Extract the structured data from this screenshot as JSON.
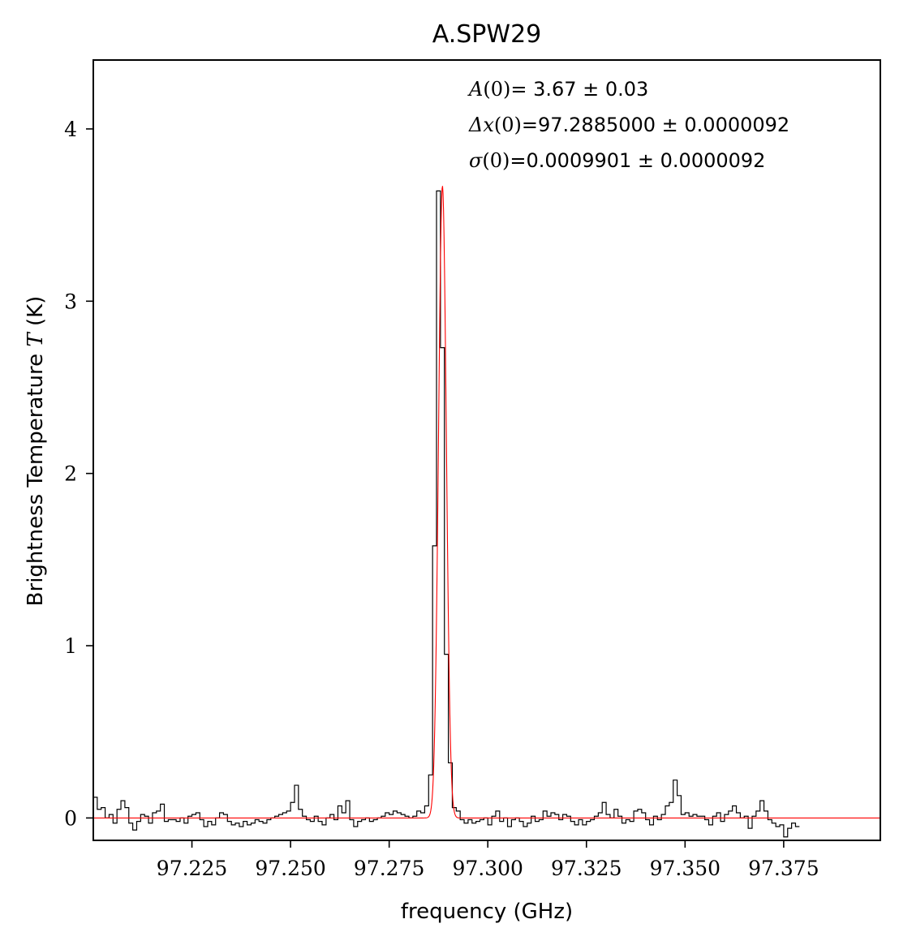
{
  "chart_data": {
    "type": "line",
    "title": "A.SPW29",
    "xlabel": "frequency (GHz)",
    "ylabel_prefix": "Brightness Temperature ",
    "ylabel_var": "T",
    "ylabel_suffix": " (K)",
    "xlim": [
      97.2,
      97.3995
    ],
    "ylim": [
      -0.13,
      4.4
    ],
    "xticks": [
      97.225,
      97.25,
      97.275,
      97.3,
      97.325,
      97.35,
      97.375
    ],
    "xtick_labels": [
      "97.225",
      "97.250",
      "97.275",
      "97.300",
      "97.325",
      "97.350",
      "97.375"
    ],
    "yticks": [
      0,
      1,
      2,
      3,
      4
    ],
    "ytick_labels": [
      "0",
      "1",
      "2",
      "3",
      "4"
    ],
    "x_start": 97.2,
    "x_step": 0.001,
    "series": [
      {
        "name": "spectrum",
        "style": "steps",
        "color": "#000000",
        "values": [
          0.12,
          0.05,
          0.06,
          0.0,
          0.02,
          -0.03,
          0.05,
          0.1,
          0.06,
          -0.03,
          -0.07,
          -0.02,
          0.02,
          0.01,
          -0.03,
          0.03,
          0.04,
          0.08,
          -0.02,
          -0.01,
          -0.01,
          -0.02,
          0.0,
          -0.03,
          0.01,
          0.02,
          0.03,
          -0.01,
          -0.05,
          -0.02,
          -0.04,
          0.0,
          0.03,
          0.02,
          -0.02,
          -0.04,
          -0.03,
          -0.05,
          -0.02,
          -0.04,
          -0.03,
          -0.01,
          -0.02,
          -0.03,
          -0.01,
          0.0,
          0.01,
          0.02,
          0.03,
          0.04,
          0.09,
          0.19,
          0.05,
          0.01,
          -0.01,
          -0.02,
          0.01,
          -0.02,
          -0.04,
          0.0,
          0.02,
          -0.01,
          0.07,
          0.03,
          0.1,
          -0.01,
          -0.05,
          -0.02,
          -0.01,
          0.0,
          -0.02,
          -0.01,
          0.0,
          0.01,
          0.03,
          0.02,
          0.04,
          0.03,
          0.02,
          0.01,
          0.0,
          0.01,
          0.04,
          0.03,
          0.07,
          0.25,
          1.58,
          3.64,
          2.73,
          0.95,
          0.32,
          0.06,
          0.04,
          -0.01,
          -0.03,
          -0.01,
          -0.03,
          -0.02,
          -0.01,
          0.0,
          -0.04,
          0.01,
          0.04,
          -0.02,
          0.0,
          -0.05,
          -0.01,
          0.0,
          -0.02,
          -0.05,
          -0.03,
          0.01,
          -0.02,
          -0.01,
          0.04,
          0.01,
          0.03,
          0.02,
          -0.01,
          0.02,
          0.01,
          -0.02,
          -0.04,
          -0.01,
          -0.04,
          -0.02,
          -0.01,
          0.01,
          0.03,
          0.09,
          0.02,
          0.0,
          0.05,
          0.01,
          -0.03,
          -0.01,
          -0.02,
          0.04,
          0.05,
          0.03,
          -0.01,
          -0.04,
          0.01,
          -0.01,
          0.02,
          0.07,
          0.09,
          0.22,
          0.13,
          0.02,
          0.03,
          0.01,
          0.02,
          0.01,
          0.01,
          -0.01,
          -0.04,
          0.01,
          0.03,
          -0.02,
          0.02,
          0.04,
          0.07,
          0.03,
          0.0,
          0.01,
          -0.06,
          0.01,
          0.04,
          0.1,
          0.04,
          -0.01,
          -0.03,
          -0.05,
          -0.04,
          -0.11,
          -0.06,
          -0.03,
          -0.05
        ]
      },
      {
        "name": "gaussian fit",
        "style": "line",
        "color": "#ff0000",
        "model": "gaussian",
        "amplitude": 3.67,
        "center": 97.2885,
        "sigma": 0.0009901
      }
    ],
    "annotations": [
      {
        "symbol": "A",
        "value": "= 3.67 ± 0.03"
      },
      {
        "symbol": "Δx",
        "value": "=97.2885000 ± 0.0000092"
      },
      {
        "symbol": "σ",
        "value": "=0.0009901 ± 0.0000092"
      }
    ]
  }
}
